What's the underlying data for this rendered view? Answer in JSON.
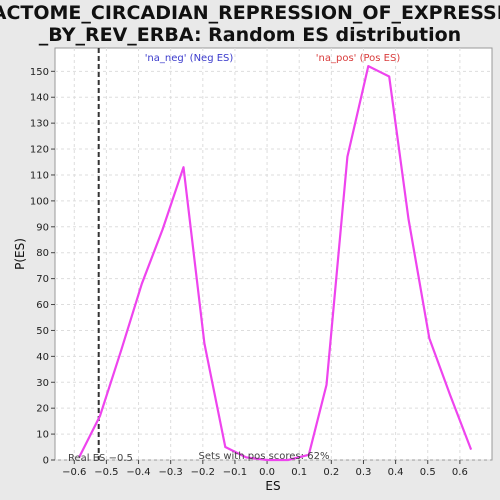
{
  "chart_data": {
    "type": "line",
    "title_line1": "REACTOME_CIRCADIAN_REPRESSION_OF_EXPRESSION",
    "title_line2": "_BY_REV_ERBA: Random ES distribution",
    "xlabel": "ES",
    "ylabel": "P(ES)",
    "xlim": [
      -0.66,
      0.7
    ],
    "ylim": [
      0,
      159
    ],
    "x_ticks": [
      -0.6,
      -0.5,
      -0.4,
      -0.3,
      -0.2,
      -0.1,
      0.0,
      0.1,
      0.2,
      0.3,
      0.4,
      0.5,
      0.6
    ],
    "x_tick_labels": [
      "−0.6",
      "−0.5",
      "−0.4",
      "−0.3",
      "−0.2",
      "−0.1",
      "0.0",
      "0.1",
      "0.2",
      "0.3",
      "0.4",
      "0.5",
      "0.6"
    ],
    "y_ticks": [
      0,
      10,
      20,
      30,
      40,
      50,
      60,
      70,
      80,
      90,
      100,
      110,
      120,
      130,
      140,
      150
    ],
    "grid": true,
    "series": [
      {
        "color": "#ee44ee",
        "x": [
          -0.585,
          -0.52,
          -0.455,
          -0.39,
          -0.325,
          -0.26,
          -0.195,
          -0.13,
          -0.065,
          0.0,
          0.065,
          0.13,
          0.185,
          0.25,
          0.315,
          0.38,
          0.44,
          0.505,
          0.57,
          0.635
        ],
        "y": [
          1,
          17,
          42,
          68,
          89,
          113,
          45,
          5,
          1,
          0,
          0,
          2,
          29,
          117,
          152,
          148,
          93,
          47,
          25,
          4
        ]
      }
    ],
    "real_es_line": {
      "x": -0.524,
      "label": "Real ES −0.5"
    },
    "annotations": {
      "neg_label": "'na_neg' (Neg ES)",
      "pos_label": "'na_pos' (Pos ES)",
      "sets_pos": "Sets with pos scores: 62%"
    },
    "colors": {
      "neg": "#3b3bcc",
      "pos": "#d93b3b",
      "curve": "#ee44ee",
      "plot_bg": "#ffffff",
      "page_bg": "#e9e9e9"
    }
  }
}
